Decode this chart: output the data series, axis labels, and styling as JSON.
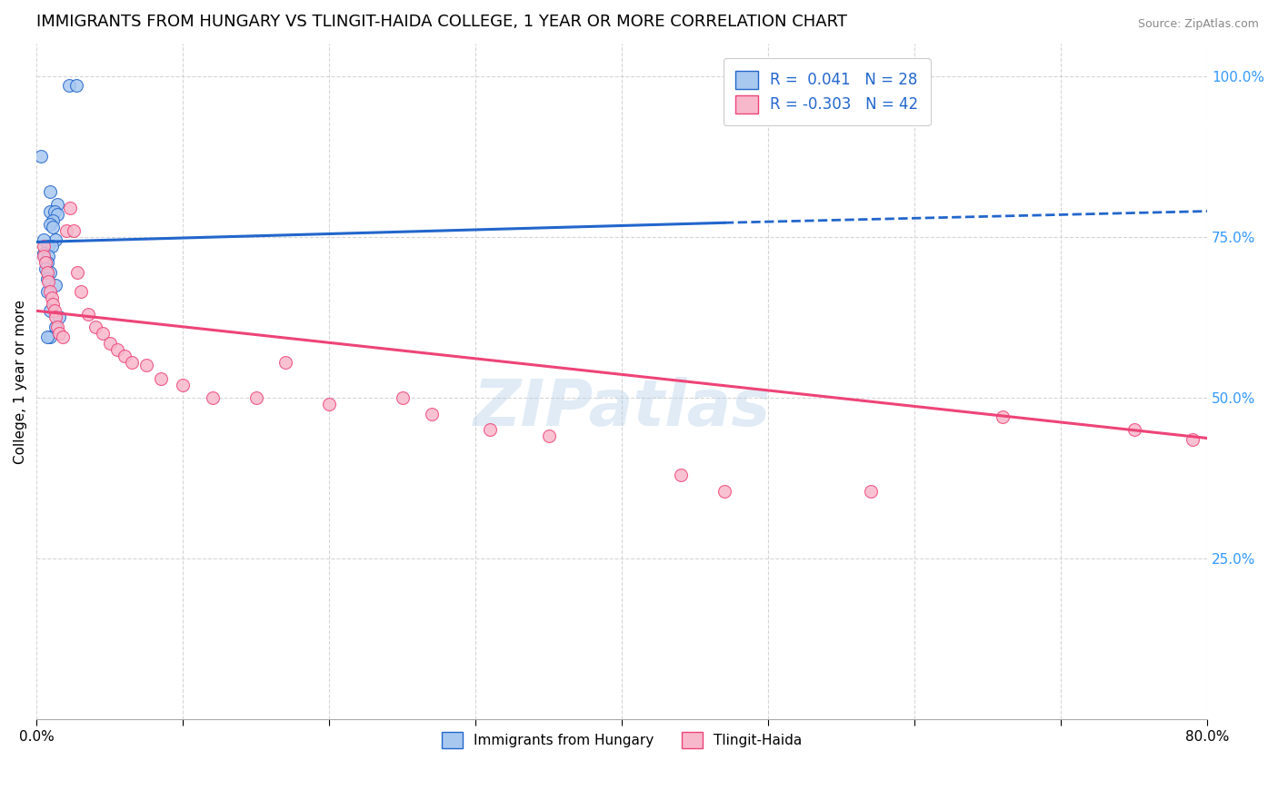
{
  "title": "IMMIGRANTS FROM HUNGARY VS TLINGIT-HAIDA COLLEGE, 1 YEAR OR MORE CORRELATION CHART",
  "source": "Source: ZipAtlas.com",
  "ylabel": "College, 1 year or more",
  "legend_label1": "Immigrants from Hungary",
  "legend_label2": "Tlingit-Haida",
  "R1": 0.041,
  "N1": 28,
  "R2": -0.303,
  "N2": 42,
  "blue_scatter_x": [
    0.022,
    0.027,
    0.003,
    0.009,
    0.014,
    0.009,
    0.012,
    0.014,
    0.011,
    0.009,
    0.011,
    0.013,
    0.005,
    0.008,
    0.01,
    0.005,
    0.008,
    0.007,
    0.006,
    0.009,
    0.007,
    0.013,
    0.007,
    0.009,
    0.015,
    0.013,
    0.009,
    0.007
  ],
  "blue_scatter_y": [
    0.985,
    0.985,
    0.875,
    0.82,
    0.8,
    0.79,
    0.79,
    0.785,
    0.775,
    0.77,
    0.765,
    0.745,
    0.745,
    0.735,
    0.735,
    0.725,
    0.72,
    0.71,
    0.7,
    0.695,
    0.685,
    0.675,
    0.665,
    0.635,
    0.625,
    0.61,
    0.595,
    0.595
  ],
  "pink_scatter_x": [
    0.005,
    0.005,
    0.006,
    0.007,
    0.008,
    0.009,
    0.01,
    0.011,
    0.012,
    0.013,
    0.014,
    0.015,
    0.018,
    0.02,
    0.023,
    0.025,
    0.028,
    0.03,
    0.035,
    0.04,
    0.045,
    0.05,
    0.055,
    0.06,
    0.065,
    0.075,
    0.085,
    0.1,
    0.12,
    0.15,
    0.17,
    0.2,
    0.25,
    0.27,
    0.31,
    0.35,
    0.44,
    0.47,
    0.57,
    0.66,
    0.75,
    0.79
  ],
  "pink_scatter_y": [
    0.735,
    0.72,
    0.71,
    0.695,
    0.68,
    0.665,
    0.655,
    0.645,
    0.635,
    0.625,
    0.61,
    0.6,
    0.595,
    0.76,
    0.795,
    0.76,
    0.695,
    0.665,
    0.63,
    0.61,
    0.6,
    0.585,
    0.575,
    0.565,
    0.555,
    0.55,
    0.53,
    0.52,
    0.5,
    0.5,
    0.555,
    0.49,
    0.5,
    0.475,
    0.45,
    0.44,
    0.38,
    0.355,
    0.355,
    0.47,
    0.45,
    0.435
  ],
  "blue_line_x0": 0.0,
  "blue_line_x1": 0.47,
  "blue_line_x2": 0.8,
  "blue_line_y0": 0.742,
  "blue_line_y1": 0.772,
  "blue_line_y2": 0.79,
  "pink_line_x0": 0.0,
  "pink_line_x1": 0.8,
  "pink_line_y0": 0.635,
  "pink_line_y1": 0.437,
  "scatter_size_blue": 100,
  "scatter_size_pink": 100,
  "scatter_color_blue": "#a8c8f0",
  "scatter_color_pink": "#f8b8cc",
  "line_color_blue": "#2266cc",
  "line_color_pink": "#ee4477",
  "background_color": "#ffffff",
  "grid_color": "#cccccc",
  "xlim": [
    0.0,
    0.8
  ],
  "ylim": [
    0.0,
    1.05
  ],
  "watermark": "ZIPatlas",
  "title_fontsize": 13,
  "axis_label_fontsize": 11,
  "legend_fontsize": 12
}
